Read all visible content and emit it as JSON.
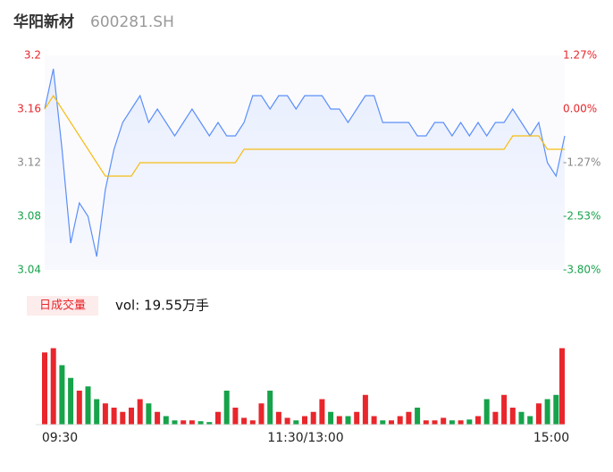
{
  "header": {
    "name": "华阳新材",
    "code": "600281.SH"
  },
  "chart_data": {
    "type": "line",
    "price_color": "#5b8ff9",
    "average_color": "#f6bd16",
    "up_color": "#e8262b",
    "down_color": "#16a34a",
    "price": [
      3.16,
      3.19,
      3.13,
      3.06,
      3.09,
      3.08,
      3.05,
      3.1,
      3.13,
      3.15,
      3.16,
      3.17,
      3.15,
      3.16,
      3.15,
      3.14,
      3.15,
      3.16,
      3.15,
      3.14,
      3.15,
      3.14,
      3.14,
      3.15,
      3.17,
      3.17,
      3.16,
      3.17,
      3.17,
      3.16,
      3.17,
      3.17,
      3.17,
      3.16,
      3.16,
      3.15,
      3.16,
      3.17,
      3.17,
      3.15,
      3.15,
      3.15,
      3.15,
      3.14,
      3.14,
      3.15,
      3.15,
      3.14,
      3.15,
      3.14,
      3.15,
      3.14,
      3.15,
      3.15,
      3.16,
      3.15,
      3.14,
      3.15,
      3.12,
      3.11,
      3.14
    ],
    "average": [
      3.16,
      3.17,
      3.16,
      3.15,
      3.14,
      3.13,
      3.12,
      3.11,
      3.11,
      3.11,
      3.11,
      3.12,
      3.12,
      3.12,
      3.12,
      3.12,
      3.12,
      3.12,
      3.12,
      3.12,
      3.12,
      3.12,
      3.12,
      3.13,
      3.13,
      3.13,
      3.13,
      3.13,
      3.13,
      3.13,
      3.13,
      3.13,
      3.13,
      3.13,
      3.13,
      3.13,
      3.13,
      3.13,
      3.13,
      3.13,
      3.13,
      3.13,
      3.13,
      3.13,
      3.13,
      3.13,
      3.13,
      3.13,
      3.13,
      3.13,
      3.13,
      3.13,
      3.13,
      3.13,
      3.14,
      3.14,
      3.14,
      3.14,
      3.13,
      3.13,
      3.13
    ],
    "ylim": [
      3.04,
      3.2
    ],
    "yticks": [
      3.2,
      3.16,
      3.12,
      3.08,
      3.04
    ],
    "ytick_colors": [
      "#e8262b",
      "#e8262b",
      "#888888",
      "#16a34a",
      "#16a34a"
    ],
    "y2lim": [
      -3.8,
      1.27
    ],
    "y2ticks": [
      {
        "value": 1.27,
        "label": "1.27%"
      },
      {
        "value": 0.0,
        "label": "0.00%"
      },
      {
        "value": -1.27,
        "label": "-1.27%"
      },
      {
        "value": -2.53,
        "label": "-2.53%"
      },
      {
        "value": -3.8,
        "label": "-3.80%"
      }
    ],
    "y2tick_colors": [
      "#e8262b",
      "#e8262b",
      "#888888",
      "#16a34a",
      "#16a34a"
    ],
    "x_labels": [
      "09:30",
      "11:30/13:00",
      "15:00"
    ],
    "volume_button": "日成交量",
    "volume_text": "vol: 19.55万手",
    "volume": [
      0.85,
      0.9,
      0.7,
      0.55,
      0.4,
      0.45,
      0.3,
      0.25,
      0.2,
      0.15,
      0.2,
      0.3,
      0.25,
      0.15,
      0.1,
      0.05,
      0.05,
      0.05,
      0.04,
      0.03,
      0.15,
      0.4,
      0.2,
      0.08,
      0.05,
      0.25,
      0.4,
      0.15,
      0.08,
      0.05,
      0.1,
      0.15,
      0.3,
      0.15,
      0.1,
      0.1,
      0.15,
      0.35,
      0.1,
      0.05,
      0.05,
      0.1,
      0.15,
      0.2,
      0.05,
      0.05,
      0.08,
      0.05,
      0.05,
      0.06,
      0.1,
      0.3,
      0.15,
      0.35,
      0.2,
      0.15,
      0.1,
      0.25,
      0.3,
      0.35,
      0.9
    ],
    "volume_ylim": [
      0,
      1.0
    ]
  }
}
